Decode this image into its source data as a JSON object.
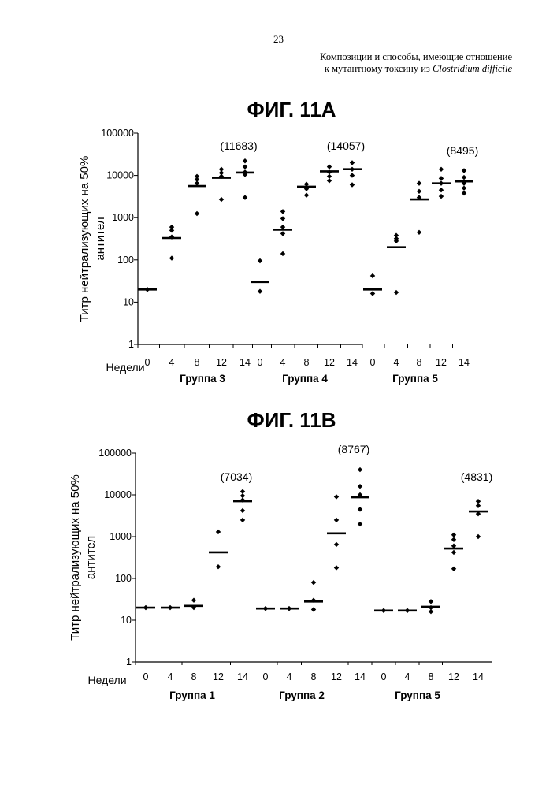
{
  "page": {
    "number": "23",
    "header_line1": "Композиции и способы, имеющие отношение",
    "header_line2_prefix": "к мутантному токсину из ",
    "header_line2_italic": "Clostridium difficile"
  },
  "colors": {
    "ink": "#000000",
    "background": "#ffffff"
  },
  "chart_data": [
    {
      "type": "scatter",
      "title": "ФИГ. 11А",
      "ylabel_line1": "Титр нейтрализующих на 50%",
      "ylabel_line2": "антител",
      "xlabel": "Недели",
      "y_scale": "log",
      "ylim": [
        1,
        100000
      ],
      "y_ticks": [
        "1",
        "10",
        "100",
        "1000",
        "10000",
        "100000"
      ],
      "x_tick_labels": [
        "0",
        "4",
        "8",
        "12",
        "14",
        "0",
        "4",
        "8",
        "12",
        "14",
        "0",
        "4",
        "8",
        "12",
        "14"
      ],
      "groups": [
        {
          "label": "Группа 3",
          "annotation": "(11683)"
        },
        {
          "label": "Группа 4",
          "annotation": "(14057)"
        },
        {
          "label": "Группа 5",
          "annotation": "(8495)"
        }
      ],
      "series": [
        {
          "week": "0",
          "mean": 20,
          "points": [
            20,
            20
          ]
        },
        {
          "week": "4",
          "mean": 330,
          "points": [
            600,
            500,
            350,
            110
          ]
        },
        {
          "week": "8",
          "mean": 5600,
          "points": [
            9500,
            8000,
            6500,
            1250
          ]
        },
        {
          "week": "12",
          "mean": 8800,
          "points": [
            14000,
            11500,
            9500,
            2700
          ]
        },
        {
          "week": "14",
          "mean": 11683,
          "points": [
            22000,
            16000,
            12000,
            10500,
            3000
          ]
        },
        {
          "week": "0",
          "mean": 30,
          "points": [
            95,
            18
          ]
        },
        {
          "week": "4",
          "mean": 520,
          "points": [
            1400,
            950,
            600,
            420,
            140
          ]
        },
        {
          "week": "8",
          "mean": 5400,
          "points": [
            6200,
            4800,
            3400
          ]
        },
        {
          "week": "12",
          "mean": 12500,
          "points": [
            16000,
            12000,
            9500,
            7500
          ]
        },
        {
          "week": "14",
          "mean": 14057,
          "points": [
            20000,
            14000,
            10000,
            6000
          ]
        },
        {
          "week": "0",
          "mean": 20,
          "points": [
            42,
            16
          ]
        },
        {
          "week": "4",
          "mean": 200,
          "points": [
            380,
            320,
            280,
            17
          ]
        },
        {
          "week": "8",
          "mean": 2700,
          "points": [
            6500,
            4200,
            3000,
            450
          ]
        },
        {
          "week": "12",
          "mean": 6500,
          "points": [
            14000,
            8500,
            6500,
            4500,
            3200
          ]
        },
        {
          "week": "14",
          "mean": 7200,
          "points": [
            13000,
            9000,
            6500,
            5000,
            3800
          ]
        }
      ]
    },
    {
      "type": "scatter",
      "title": "ФИГ. 11В",
      "ylabel_line1": "Титр нейтрализующих на 50%",
      "ylabel_line2": "антител",
      "xlabel": "Недели",
      "y_scale": "log",
      "ylim": [
        1,
        100000
      ],
      "y_ticks": [
        "1",
        "10",
        "100",
        "1000",
        "10000",
        "100000"
      ],
      "x_tick_labels": [
        "0",
        "4",
        "8",
        "12",
        "14",
        "0",
        "4",
        "8",
        "12",
        "14",
        "0",
        "4",
        "8",
        "12",
        "14"
      ],
      "groups": [
        {
          "label": "Группа 1",
          "annotation": "(7034)"
        },
        {
          "label": "Группа 2",
          "annotation": "(8767)"
        },
        {
          "label": "Группа 5",
          "annotation": "(4831)"
        }
      ],
      "series": [
        {
          "week": "0",
          "mean": 20,
          "points": [
            20,
            20
          ]
        },
        {
          "week": "4",
          "mean": 20,
          "points": [
            20,
            20
          ]
        },
        {
          "week": "8",
          "mean": 22,
          "points": [
            30,
            20
          ]
        },
        {
          "week": "12",
          "mean": 420,
          "points": [
            1300,
            190
          ]
        },
        {
          "week": "14",
          "mean": 7034,
          "points": [
            12000,
            9500,
            7500,
            4200,
            2500
          ]
        },
        {
          "week": "0",
          "mean": 19,
          "points": [
            19,
            19
          ]
        },
        {
          "week": "4",
          "mean": 19,
          "points": [
            19,
            19
          ]
        },
        {
          "week": "8",
          "mean": 28,
          "points": [
            80,
            30,
            18
          ]
        },
        {
          "week": "12",
          "mean": 1200,
          "points": [
            9000,
            2500,
            650,
            180
          ]
        },
        {
          "week": "14",
          "mean": 8767,
          "points": [
            40000,
            16000,
            10000,
            4500,
            2000
          ]
        },
        {
          "week": "0",
          "mean": 17,
          "points": [
            17,
            17
          ]
        },
        {
          "week": "4",
          "mean": 17,
          "points": [
            17,
            17
          ]
        },
        {
          "week": "8",
          "mean": 21,
          "points": [
            28,
            20,
            16
          ]
        },
        {
          "week": "12",
          "mean": 520,
          "points": [
            1100,
            850,
            600,
            420,
            170
          ]
        },
        {
          "week": "14",
          "mean": 4000,
          "points": [
            7000,
            5500,
            3500,
            1000
          ]
        }
      ]
    }
  ]
}
